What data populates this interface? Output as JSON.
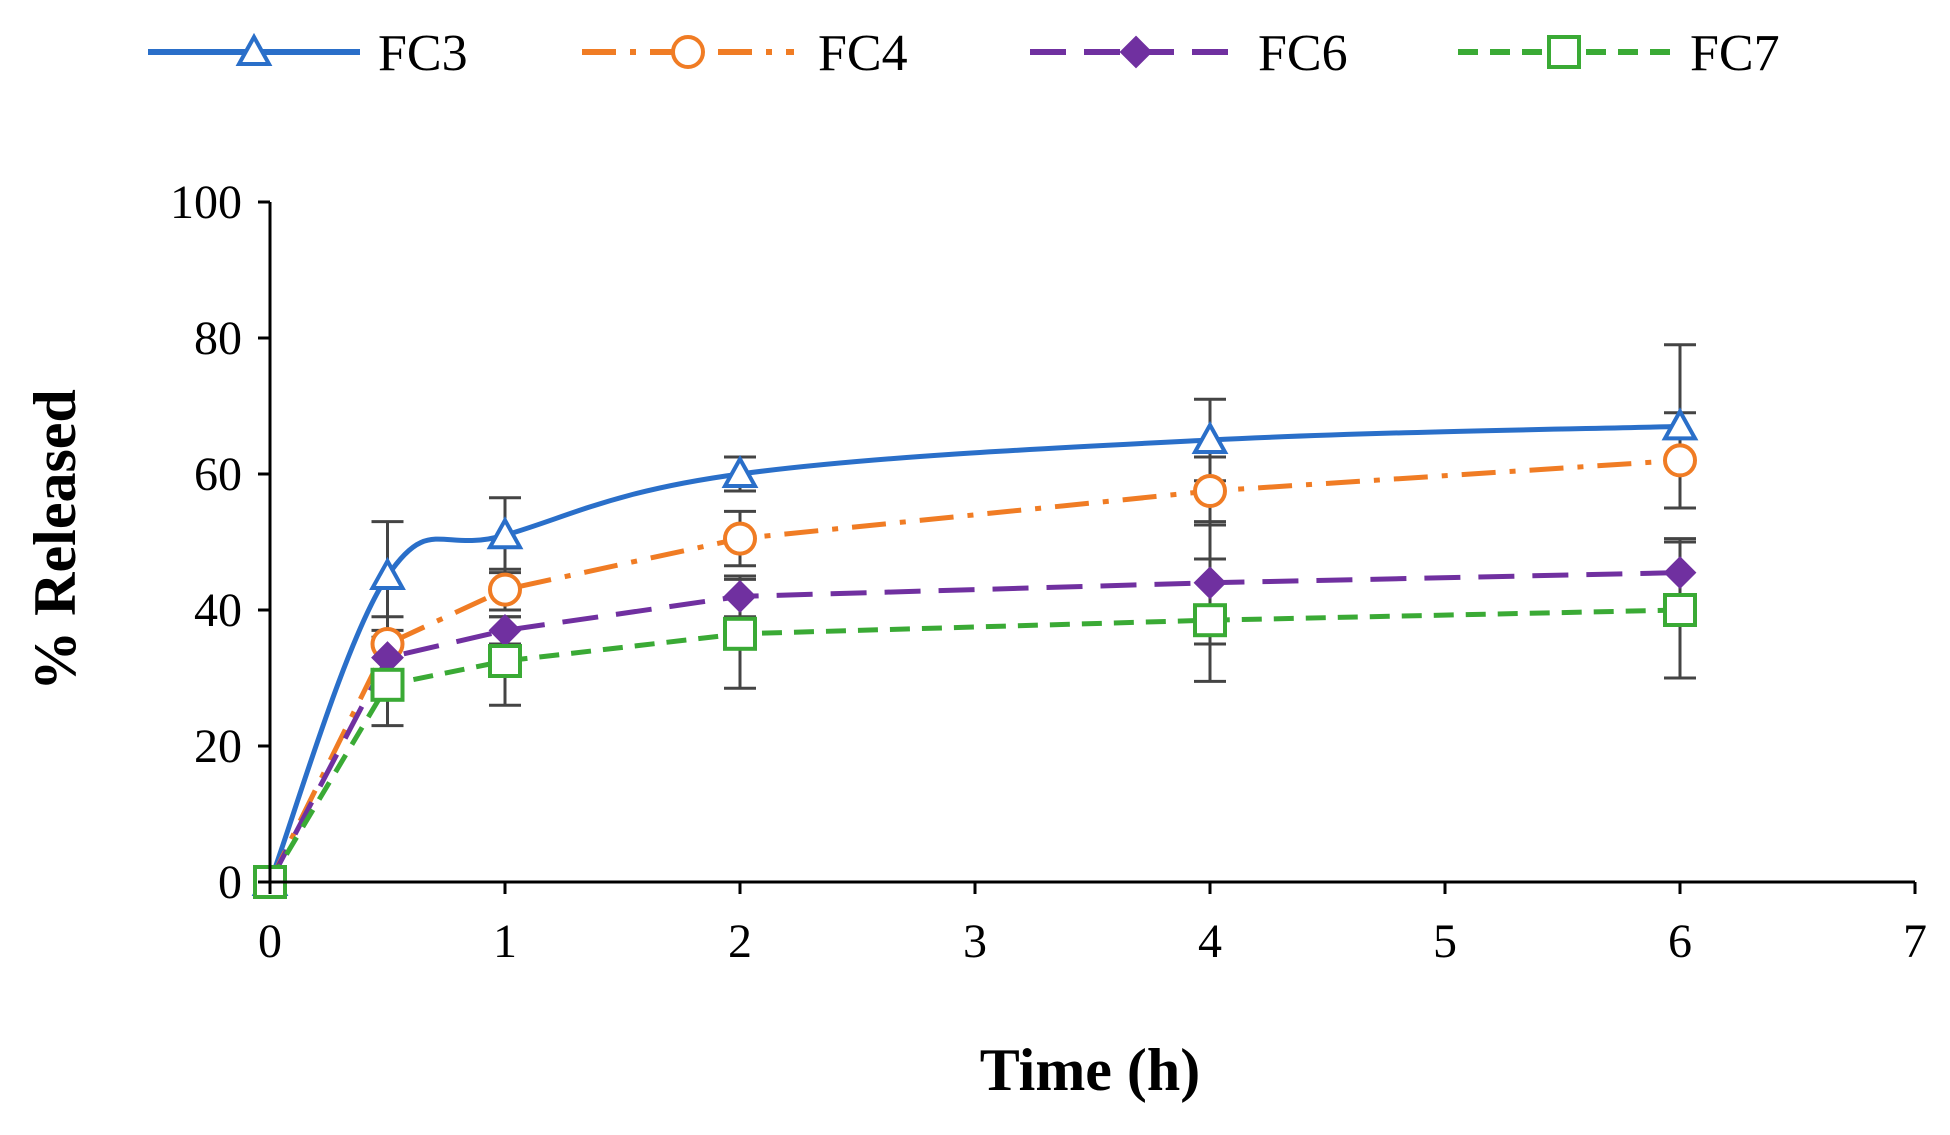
{
  "chart_data": {
    "type": "line",
    "title": "",
    "xlabel": "Time (h)",
    "ylabel": "% Released",
    "xlim": [
      0,
      7
    ],
    "ylim": [
      0,
      100
    ],
    "xticks": [
      "0",
      "1",
      "2",
      "3",
      "4",
      "5",
      "6",
      "7"
    ],
    "yticks": [
      "0",
      "20",
      "40",
      "60",
      "80",
      "100"
    ],
    "x": [
      0,
      0.5,
      1,
      2,
      4,
      6
    ],
    "legend_position": "top",
    "series": [
      {
        "name": "FC3",
        "color": "#2a6fc9",
        "line_style": "solid",
        "marker": "triangle",
        "smooth": true,
        "values": [
          0,
          45,
          51,
          60,
          65,
          67
        ],
        "errors": [
          0,
          8,
          5.5,
          2.5,
          6,
          12
        ]
      },
      {
        "name": "FC4",
        "color": "#f07c24",
        "line_style": "dashdot",
        "marker": "circle",
        "smooth": false,
        "values": [
          0,
          35,
          43,
          50.5,
          57.5,
          62
        ],
        "errors": [
          0,
          4,
          3,
          4,
          5,
          7
        ]
      },
      {
        "name": "FC6",
        "color": "#7030a0",
        "line_style": "dash",
        "marker": "diamond",
        "smooth": false,
        "values": [
          0,
          33,
          37,
          42,
          44,
          45.5
        ],
        "errors": [
          0,
          3,
          2,
          3,
          9,
          5
        ]
      },
      {
        "name": "FC7",
        "color": "#3aaa35",
        "line_style": "shortdash",
        "marker": "square",
        "smooth": false,
        "values": [
          0,
          29,
          32.5,
          36.5,
          38.5,
          40
        ],
        "errors": [
          0,
          6,
          6.5,
          8,
          9,
          10
        ]
      }
    ]
  }
}
